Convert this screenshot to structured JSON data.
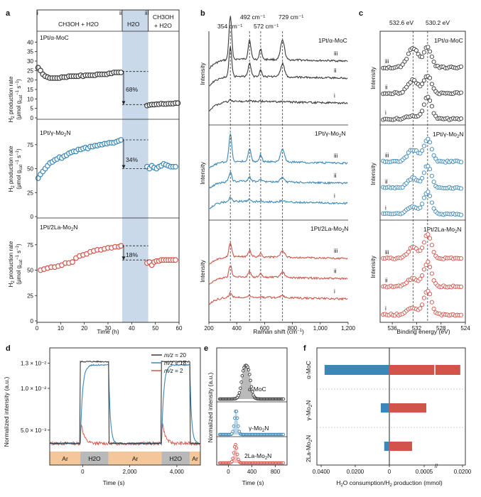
{
  "figure": {
    "panel_labels": [
      "a",
      "b",
      "c",
      "d",
      "e",
      "f"
    ]
  },
  "colors": {
    "black_series": "#3a3a3a",
    "blue_series": "#3a87b8",
    "red_series": "#d1544a",
    "h2o_band": "#c9d9ea",
    "ar_band": "#f3c79a",
    "h2o_seg_band": "#b9b9b9"
  },
  "chart_data": [
    {
      "id": "a",
      "type": "scatter",
      "xlabel": "Time (h)",
      "ylabel": "H2 production rate (μmol g_cat⁻¹ s⁻¹)",
      "ylabel_parts": {
        "pre": "H",
        "sub1": "2",
        "mid": " production rate",
        "line2_pre": "(μmol g",
        "line2_sub": "cat",
        "line2_sup1": "−1",
        "line2_mid": " s",
        "line2_sup2": "−1",
        "line2_post": ")"
      },
      "xticks": [
        0,
        10,
        20,
        30,
        40,
        50,
        60
      ],
      "xlim": [
        0,
        60
      ],
      "h2o_band": [
        36,
        47
      ],
      "phases": {
        "i": "i",
        "ii": "ii",
        "iii": "iii",
        "text_left": "CH3OH + H2O",
        "text_mid": "H2O",
        "text_right_1": "CH3OH",
        "text_right_2": "+ H2O"
      },
      "subplots": [
        {
          "name": "1Pt/α-MoC",
          "color": "#3a3a3a",
          "ylim": [
            0,
            45
          ],
          "yticks": [
            0,
            5,
            10,
            15,
            20,
            25,
            30,
            35,
            40
          ],
          "decline_label": "68%",
          "ref_high": 24.5,
          "ref_low": 7.0,
          "x1": [
            0.5,
            1.5,
            2.5,
            3.5,
            4.5,
            5.5,
            6.5,
            7.5,
            8.5,
            9.5,
            10.5,
            11.5,
            12.5,
            13.5,
            14.5,
            15.5,
            16.5,
            17.5,
            18.5,
            19.5,
            20.5,
            21.5,
            22.5,
            23.5,
            24.5,
            25.5,
            26.5,
            27.5,
            28.5,
            29.5,
            30.5,
            31.5,
            32.5,
            33.5,
            34.5,
            35.5
          ],
          "y1": [
            26.5,
            25,
            23,
            22,
            21.5,
            21,
            21,
            21,
            21,
            21,
            21.5,
            21.5,
            21.5,
            22,
            22,
            22,
            22,
            22,
            22.5,
            22,
            22.5,
            22.5,
            22.5,
            22.5,
            22.5,
            23,
            23,
            23,
            23,
            23,
            23.5,
            23.5,
            24,
            24,
            24,
            24
          ],
          "x2": [
            46.5,
            47.5,
            48.5,
            49.5,
            50.5,
            51.5,
            52.5,
            53.5,
            54.5,
            55.5,
            56.5,
            57.5,
            58.5,
            59.5
          ],
          "y2": [
            6.5,
            6.8,
            7,
            7,
            7.2,
            7.2,
            7.5,
            7.3,
            7.3,
            7.5,
            7.5,
            7.5,
            7.8,
            7.8
          ]
        },
        {
          "name": "1Pt/γ-Mo2N",
          "color": "#3a87b8",
          "ylim": [
            0,
            100
          ],
          "yticks": [
            0,
            25,
            50,
            75
          ],
          "decline_label": "34%",
          "ref_high": 80,
          "ref_low": 50,
          "x1": [
            0.5,
            1.5,
            2.5,
            3.5,
            4.5,
            5.5,
            6.5,
            7.5,
            8.5,
            9.5,
            10.5,
            11.5,
            12.5,
            13.5,
            14.5,
            15.5,
            16.5,
            17.5,
            18.5,
            19.5,
            20.5,
            21.5,
            22.5,
            23.5,
            24.5,
            25.5,
            26.5,
            27.5,
            28.5,
            29.5,
            30.5,
            31.5,
            32.5,
            33.5,
            34.5,
            35.5
          ],
          "y1": [
            40,
            44,
            47,
            50,
            53,
            56,
            57,
            59,
            60,
            62,
            61,
            63,
            64,
            66,
            67,
            68,
            68,
            70,
            70,
            71,
            72,
            71,
            73,
            73,
            74,
            74,
            75,
            75,
            76,
            76,
            77,
            77,
            77,
            78,
            79,
            80
          ],
          "x2": [
            46.5,
            47.5,
            48.5,
            49.5,
            50.5,
            51.5,
            52.5,
            53.5,
            54.5,
            55.5,
            56.5,
            57.5,
            58.5
          ],
          "y2": [
            52,
            50,
            53,
            51,
            50,
            52,
            53,
            55,
            54,
            53,
            52,
            52,
            52
          ]
        },
        {
          "name": "1Pt/2La-Mo2N",
          "color": "#d1544a",
          "ylim": [
            0,
            100
          ],
          "yticks": [
            0,
            25,
            50,
            75
          ],
          "decline_label": "18%",
          "ref_high": 74,
          "ref_low": 60,
          "x1": [
            1.5,
            3,
            4.5,
            6,
            7.5,
            9,
            10.5,
            12,
            13.5,
            15,
            16.5,
            18,
            19.5,
            21,
            22.5,
            24,
            25.5,
            27,
            28.5,
            30,
            31.5,
            33,
            34.5,
            35.5
          ],
          "y1": [
            50,
            51,
            52,
            53,
            53,
            54,
            55,
            57,
            57,
            58,
            62,
            64,
            65,
            66,
            68,
            69,
            70,
            70,
            71,
            72,
            72,
            73,
            73,
            74
          ],
          "x2": [
            46.5,
            47.5,
            48.5,
            49.5,
            50.5,
            51.5,
            52.5,
            53.5,
            54.5,
            55.5,
            56.5,
            57.5,
            58.5
          ],
          "y2": [
            57,
            58,
            55,
            58,
            59,
            59,
            60,
            60,
            60,
            60,
            60,
            60,
            60
          ]
        }
      ]
    },
    {
      "id": "b",
      "type": "line",
      "xlabel": "Raman shift (cm⁻¹)",
      "ylabel": "Intensity",
      "xlim": [
        200,
        1200
      ],
      "xticks": [
        "200",
        "400",
        "600",
        "800",
        "1,000",
        "1,200"
      ],
      "xtick_values": [
        200,
        400,
        600,
        800,
        1000,
        1200
      ],
      "dashed_positions": [
        354,
        492,
        572,
        729
      ],
      "dashed_labels": [
        "354 cm⁻¹",
        "492 cm⁻¹",
        "572 cm⁻¹",
        "729 cm⁻¹"
      ],
      "spectra": [
        {
          "name": "1Pt/α-MoC",
          "color": "#3a3a3a",
          "curves": [
            "iii",
            "ii",
            "i"
          ],
          "baselines": [
            0.2,
            0.42,
            0.74
          ],
          "peak_heights": [
            0.55,
            0.38,
            0.02
          ]
        },
        {
          "name": "1Pt/γ-Mo2N",
          "color": "#3a87b8",
          "curves": [
            "iii",
            "ii",
            "i"
          ],
          "baselines": [
            0.3,
            0.55,
            0.8
          ],
          "peak_heights": [
            0.35,
            0.12,
            0.05
          ]
        },
        {
          "name": "1Pt/2La-Mo2N",
          "color": "#d1544a",
          "curves": [
            "iii",
            "ii",
            "i"
          ],
          "baselines": [
            0.3,
            0.55,
            0.8
          ],
          "peak_heights": [
            0.18,
            0.15,
            0.05
          ]
        }
      ]
    },
    {
      "id": "c",
      "type": "scatter",
      "xlabel": "Binding energy (eV)",
      "ylabel": "Intensity",
      "xlim": [
        538,
        524
      ],
      "xticks": [
        536,
        532,
        528,
        524
      ],
      "dashed_positions": [
        532.6,
        530.2
      ],
      "dashed_labels": [
        "532.6 eV",
        "530.2 eV"
      ],
      "spectra": [
        {
          "name": "1Pt/α-MoC",
          "color": "#3a3a3a",
          "curves": [
            "iii",
            "ii",
            "i"
          ]
        },
        {
          "name": "1Pt/γ-Mo2N",
          "color": "#3a87b8",
          "curves": [
            "iii",
            "ii",
            "i"
          ]
        },
        {
          "name": "1Pt/2La-Mo2N",
          "color": "#d1544a",
          "curves": [
            "iii",
            "ii",
            "i"
          ]
        }
      ]
    },
    {
      "id": "d",
      "type": "line",
      "xlabel": "Time (s)",
      "ylabel": "Normalized intensity (a.u.)",
      "xlim": [
        -1400,
        5000
      ],
      "xticks": [
        0,
        2000,
        4000
      ],
      "xtick_labels": [
        "0",
        "2,000",
        "4,000"
      ],
      "ylim": [
        0.0026,
        0.0145
      ],
      "yticks": [
        0.005,
        0.01,
        0.013
      ],
      "ytick_labels": [
        "5.0 × 10⁻³",
        "1.0 × 10⁻²",
        "1.3 × 10⁻²"
      ],
      "legend": [
        {
          "label": "m/z = 20",
          "color": "#3a3a3a"
        },
        {
          "label": "m/z = 18",
          "color": "#3a87b8"
        },
        {
          "label": "m/z = 2",
          "color": "#d1544a"
        }
      ],
      "legend_prefix": "m/z = ",
      "legend_values": [
        "20",
        "18",
        "2"
      ],
      "gas_segments": [
        {
          "label": "Ar",
          "from": -1400,
          "to": -100
        },
        {
          "label": "H2O",
          "from": -100,
          "to": 1100
        },
        {
          "label": "Ar",
          "from": 1100,
          "to": 3350
        },
        {
          "label": "H2O",
          "from": 3350,
          "to": 4550
        },
        {
          "label": "Ar",
          "from": 4550,
          "to": 5000
        }
      ]
    },
    {
      "id": "e",
      "type": "area",
      "xlabel": "Time (s)",
      "ylabel": "Normalized intensity (a.u.)",
      "xlim": [
        -200,
        1000
      ],
      "xticks": [
        0,
        400,
        800
      ],
      "peaks": [
        {
          "name": "α-MoC",
          "color": "#3a3a3a",
          "center": 300,
          "width": 160,
          "shape": "plateau"
        },
        {
          "name": "γ-Mo2N",
          "color": "#3a87b8",
          "center": 130,
          "width": 70,
          "shape": "peak"
        },
        {
          "name": "2La-Mo2N",
          "color": "#d1544a",
          "center": 120,
          "width": 70,
          "shape": "peak"
        }
      ]
    },
    {
      "id": "f",
      "type": "bar",
      "xlabel": "H2O consumption/H2 production (mmol)",
      "xticks_left": [
        "0.0400",
        "0.0200",
        "0"
      ],
      "xticks_right": [
        "0.0005",
        "0.0200"
      ],
      "categories": [
        "α-MoC",
        "γ-Mo2N",
        "2La-Mo2N"
      ],
      "series": [
        {
          "name": "H2O consumption",
          "color": "#3a87b8",
          "values": [
            0.038,
            0.005,
            0.003
          ]
        },
        {
          "name": "H2 production",
          "color": "#d1544a",
          "values": [
            0.021,
            0.00065,
            0.0004
          ]
        }
      ]
    }
  ]
}
